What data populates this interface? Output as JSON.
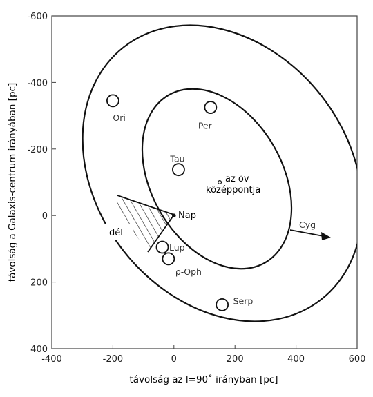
{
  "axes": {
    "xlabel": "távolság az l=90˚ irányban [pc]",
    "ylabel": "távolság a Galaxis-centrum irányában [pc]",
    "xlim": [
      -400,
      600
    ],
    "ylim": [
      -600,
      400
    ],
    "x_ticks": [
      "-400",
      "-200",
      "0",
      "200",
      "400",
      "600"
    ],
    "y_ticks": [
      "-600",
      "-400",
      "-200",
      "0",
      "200",
      "400"
    ]
  },
  "regions": [
    {
      "label": "Ori",
      "x": -200,
      "y": -345
    },
    {
      "label": "Per",
      "x": 120,
      "y": -325
    },
    {
      "label": "Tau",
      "x": 15,
      "y": -138
    },
    {
      "label": "Lup",
      "x": -38,
      "y": 95
    },
    {
      "label": "ρ-Oph",
      "x": -18,
      "y": 130
    },
    {
      "label": "Serp",
      "x": 158,
      "y": 268
    }
  ],
  "markers": {
    "sun_label": "Nap",
    "center_label_line1": "az öv",
    "center_label_line2": "középpontja",
    "south_label": "dél",
    "direction_label": "Cyg"
  }
}
